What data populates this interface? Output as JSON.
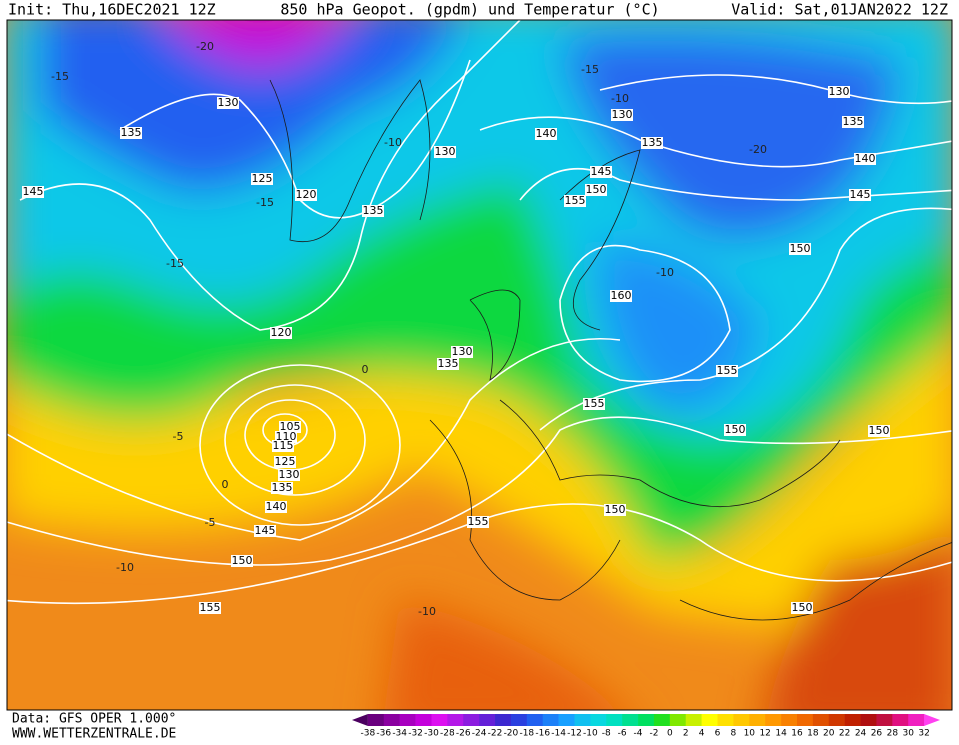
{
  "header": {
    "init": "Init: Thu,16DEC2021 12Z",
    "title": "850 hPa Geopot. (gpdm) und Temperatur (°C)",
    "valid": "Valid: Sat,01JAN2022 12Z"
  },
  "footer": {
    "data": "Data: GFS OPER 1.000°",
    "site": "WWW.WETTERZENTRALE.DE"
  },
  "geopotential_labels": [
    "130",
    "135",
    "145",
    "125",
    "120",
    "135",
    "130",
    "140",
    "130",
    "135",
    "145",
    "150",
    "155",
    "130",
    "135",
    "140",
    "145",
    "150",
    "160",
    "120",
    "130",
    "135",
    "155",
    "155",
    "150",
    "150",
    "105",
    "110",
    "115",
    "125",
    "130",
    "135",
    "140",
    "145",
    "150",
    "155",
    "150",
    "155",
    "150"
  ],
  "temperature_labels": [
    "-15",
    "-10",
    "-15",
    "-20",
    "-15",
    "-15",
    "-10",
    "-5",
    "0",
    "-5",
    "-10",
    "-10",
    "-20",
    "-10",
    "0"
  ],
  "colorbar": {
    "labels": [
      -38,
      -36,
      -34,
      -32,
      -30,
      -28,
      -26,
      -24,
      -22,
      -20,
      -18,
      -16,
      -14,
      -12,
      -10,
      -8,
      -6,
      -4,
      -2,
      0,
      2,
      4,
      6,
      8,
      10,
      12,
      14,
      16,
      18,
      20,
      22,
      24,
      26,
      28,
      30,
      32
    ],
    "colors": [
      "#4b0060",
      "#6a007f",
      "#8a00a0",
      "#a800c0",
      "#c400dc",
      "#dc10f0",
      "#b418e8",
      "#8c1ce0",
      "#6420d8",
      "#3c28d0",
      "#2a40e0",
      "#2060f0",
      "#1c80f8",
      "#18a0ff",
      "#10c0f0",
      "#08d8e0",
      "#00e0c0",
      "#00e090",
      "#00e060",
      "#20e020",
      "#80e800",
      "#c8f000",
      "#ffff00",
      "#ffe000",
      "#ffc800",
      "#ffb000",
      "#ff9800",
      "#f88000",
      "#f06800",
      "#e05000",
      "#d03800",
      "#c02000",
      "#b01010",
      "#c01040",
      "#e01080",
      "#f020c0",
      "#ff40f0"
    ]
  }
}
